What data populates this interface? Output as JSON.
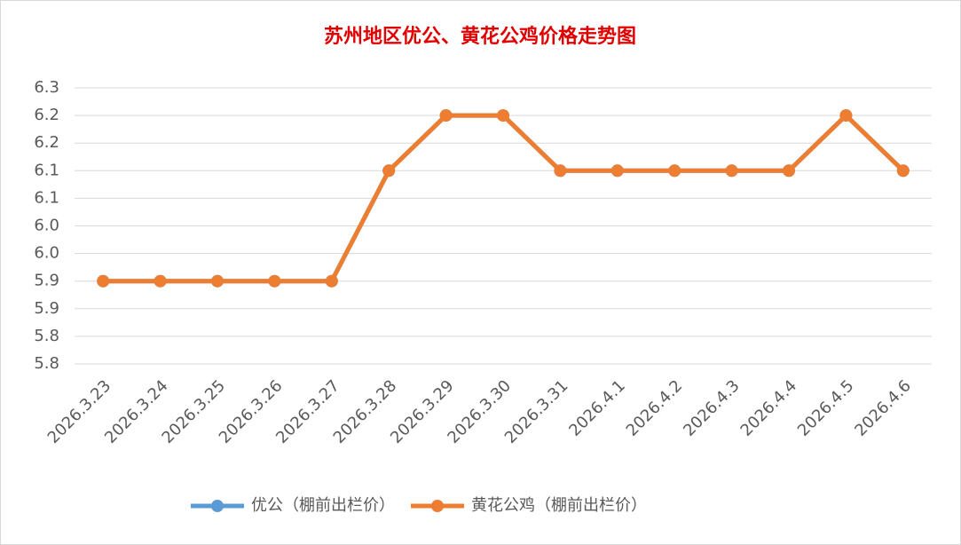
{
  "chart_data": {
    "type": "line",
    "title": "苏州地区优公、黄花公鸡价格走势图",
    "categories": [
      "2026.3.23",
      "2026.3.24",
      "2026.3.25",
      "2026.3.26",
      "2026.3.27",
      "2026.3.28",
      "2026.3.29",
      "2026.3.30",
      "2026.3.31",
      "2026.4.1",
      "2026.4.2",
      "2026.4.3",
      "2026.4.4",
      "2026.4.5",
      "2026.4.6"
    ],
    "series": [
      {
        "name": "优公（棚前出栏价）",
        "color": "#5b9bd5",
        "values": [
          5.9,
          5.9,
          5.9,
          5.9,
          5.9,
          6.1,
          6.2,
          6.2,
          6.1,
          6.1,
          6.1,
          6.1,
          6.1,
          6.2,
          6.1
        ]
      },
      {
        "name": "黄花公鸡（棚前出栏价）",
        "color": "#ed7d31",
        "values": [
          5.9,
          5.9,
          5.9,
          5.9,
          5.9,
          6.1,
          6.2,
          6.2,
          6.1,
          6.1,
          6.1,
          6.1,
          6.1,
          6.2,
          6.1
        ]
      }
    ],
    "ylim": [
      5.75,
      6.25
    ],
    "yticks": [
      {
        "value": 5.75,
        "label": "5.8"
      },
      5.8,
      {
        "value": 5.85,
        "label": "5.9"
      },
      5.9,
      {
        "value": 5.95,
        "label": "6.0"
      },
      {
        "value": 6.0,
        "label": "6.0"
      },
      {
        "value": 6.05,
        "label": "6.1"
      },
      6.1,
      {
        "value": 6.15,
        "label": "6.2"
      },
      6.2,
      {
        "value": 6.25,
        "label": "6.3"
      }
    ],
    "grid": true,
    "legend": "bottom"
  }
}
